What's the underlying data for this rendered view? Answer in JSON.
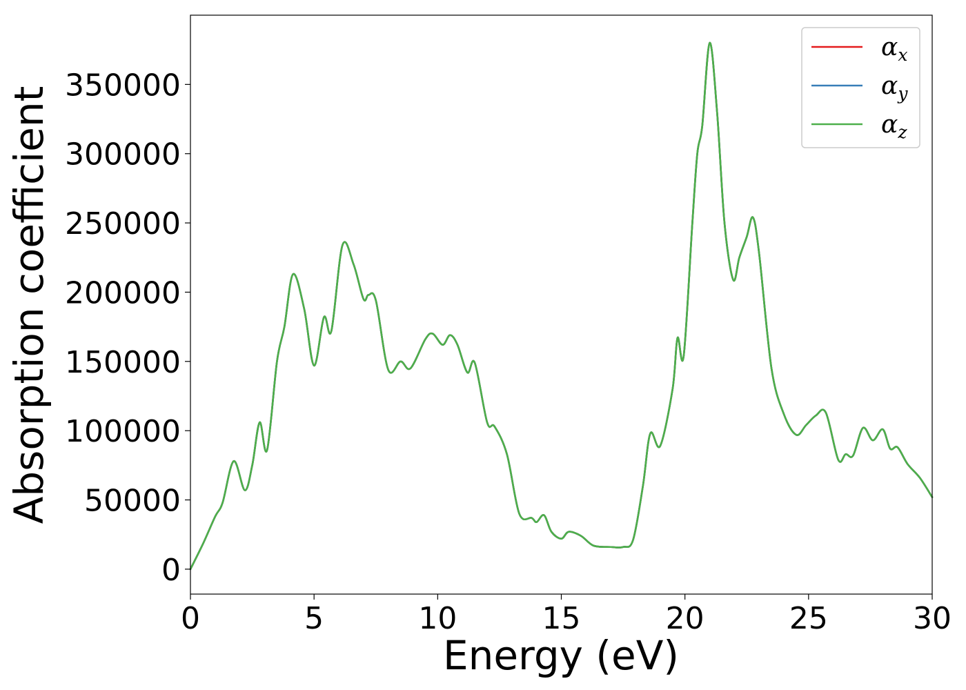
{
  "chart_data": {
    "type": "line",
    "title": "",
    "xlabel": "Energy (eV)",
    "ylabel": "Absorption coefficient",
    "xlim": [
      0,
      30
    ],
    "ylim": [
      -18000,
      400000
    ],
    "xticks": [
      0,
      5,
      10,
      15,
      20,
      25,
      30
    ],
    "xtick_labels": [
      "0",
      "5",
      "10",
      "15",
      "20",
      "25",
      "30"
    ],
    "yticks": [
      0,
      50000,
      100000,
      150000,
      200000,
      250000,
      300000,
      350000
    ],
    "ytick_labels": [
      "0",
      "50000",
      "100000",
      "150000",
      "200000",
      "250000",
      "300000",
      "350000"
    ],
    "grid": false,
    "legend_position": "top-right",
    "x": [
      0,
      0.5,
      1.0,
      1.3,
      1.75,
      2.2,
      2.5,
      2.8,
      3.1,
      3.5,
      3.8,
      4.15,
      4.6,
      5.0,
      5.4,
      5.7,
      6.15,
      6.6,
      7.0,
      7.2,
      7.5,
      8.0,
      8.5,
      8.9,
      9.5,
      9.8,
      10.2,
      10.5,
      10.8,
      11.2,
      11.5,
      12.0,
      12.3,
      12.8,
      13.3,
      13.8,
      14.0,
      14.3,
      14.6,
      15.0,
      15.3,
      15.8,
      16.3,
      17.0,
      17.5,
      17.9,
      18.3,
      18.6,
      19.0,
      19.5,
      19.7,
      19.95,
      20.3,
      20.5,
      20.7,
      21.0,
      21.3,
      21.6,
      21.95,
      22.2,
      22.5,
      22.75,
      23.0,
      23.5,
      24.0,
      24.5,
      24.9,
      25.3,
      25.7,
      26.2,
      26.5,
      26.8,
      27.2,
      27.6,
      28.0,
      28.3,
      28.6,
      29.0,
      29.5,
      30.0
    ],
    "series": [
      {
        "name": "αx",
        "sub": "x",
        "color": "#e41a1c",
        "values": [
          0,
          18000,
          38000,
          48000,
          78000,
          57000,
          75000,
          106000,
          86000,
          150000,
          175000,
          213000,
          188000,
          147000,
          182000,
          172000,
          234000,
          220000,
          195000,
          198000,
          194000,
          144000,
          150000,
          145000,
          166000,
          170000,
          162000,
          169000,
          162000,
          142000,
          149000,
          106000,
          103000,
          83000,
          40000,
          37000,
          34000,
          39000,
          27000,
          22000,
          27000,
          24000,
          17000,
          16000,
          16000,
          21000,
          60000,
          98000,
          89000,
          130000,
          167000,
          154000,
          250000,
          300000,
          320000,
          380000,
          330000,
          250000,
          209000,
          225000,
          240000,
          254000,
          228000,
          145000,
          112000,
          97000,
          104000,
          111000,
          113000,
          79000,
          83000,
          82000,
          102000,
          93000,
          101000,
          87000,
          88000,
          76000,
          66000,
          52000
        ]
      },
      {
        "name": "αy",
        "sub": "y",
        "color": "#377eb8",
        "values": [
          0,
          18000,
          38000,
          48000,
          78000,
          57000,
          75000,
          106000,
          86000,
          150000,
          175000,
          213000,
          188000,
          147000,
          182000,
          172000,
          234000,
          220000,
          195000,
          198000,
          194000,
          144000,
          150000,
          145000,
          166000,
          170000,
          162000,
          169000,
          162000,
          142000,
          149000,
          106000,
          103000,
          83000,
          40000,
          37000,
          34000,
          39000,
          27000,
          22000,
          27000,
          24000,
          17000,
          16000,
          16000,
          21000,
          60000,
          98000,
          89000,
          130000,
          167000,
          154000,
          250000,
          300000,
          320000,
          380000,
          330000,
          250000,
          209000,
          225000,
          240000,
          254000,
          228000,
          145000,
          112000,
          97000,
          104000,
          111000,
          113000,
          79000,
          83000,
          82000,
          102000,
          93000,
          101000,
          87000,
          88000,
          76000,
          66000,
          52000
        ]
      },
      {
        "name": "αz",
        "sub": "z",
        "color": "#4daf4a",
        "values": [
          0,
          18000,
          38000,
          48000,
          78000,
          57000,
          75000,
          106000,
          86000,
          150000,
          175000,
          213000,
          188000,
          147000,
          182000,
          172000,
          234000,
          220000,
          195000,
          198000,
          194000,
          144000,
          150000,
          145000,
          166000,
          170000,
          162000,
          169000,
          162000,
          142000,
          149000,
          106000,
          103000,
          83000,
          40000,
          37000,
          34000,
          39000,
          27000,
          22000,
          27000,
          24000,
          17000,
          16000,
          16000,
          21000,
          60000,
          98000,
          89000,
          130000,
          167000,
          154000,
          250000,
          300000,
          320000,
          380000,
          330000,
          250000,
          209000,
          225000,
          240000,
          254000,
          228000,
          145000,
          112000,
          97000,
          104000,
          111000,
          113000,
          79000,
          83000,
          82000,
          102000,
          93000,
          101000,
          87000,
          88000,
          76000,
          66000,
          52000
        ]
      }
    ]
  }
}
